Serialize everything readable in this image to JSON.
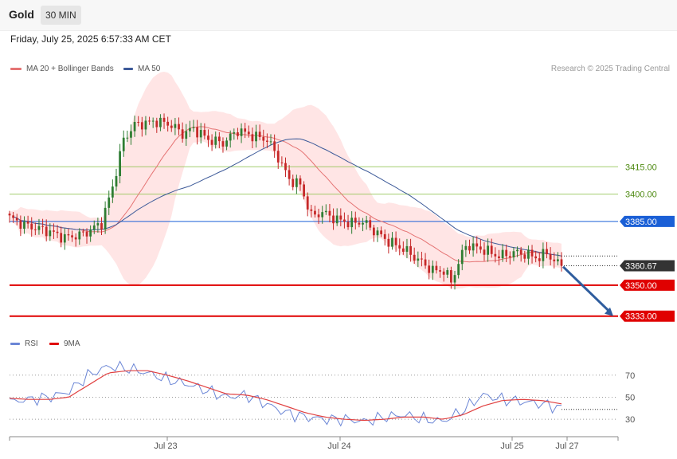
{
  "header": {
    "symbol": "Gold",
    "timeframe": "30 MIN"
  },
  "datetime": "Friday, July 25, 2025 6:57:33 AM CET",
  "legend": {
    "ma20_label": "MA 20 + Bollinger Bands",
    "ma50_label": "MA 50",
    "copyright": "Research © 2025 Trading Central",
    "rsi_label": "RSI",
    "rsi_ma_label": "9MA"
  },
  "colors": {
    "up_candle": "#2e7d32",
    "down_candle": "#c62828",
    "ma20": "#e57373",
    "ma50": "#3d5a99",
    "bollinger_fill": "#ffe0e0",
    "support": "#e00000",
    "pivot": "#1a5fd6",
    "resistance": "#8bc34a",
    "arrow": "#2f5d9e",
    "rsi": "#6b86d6",
    "rsi_ma": "#e04040"
  },
  "chart_data": [
    {
      "type": "candlestick",
      "title": "Gold",
      "timeframe": "30 MIN",
      "y_range": [
        3325,
        3465
      ],
      "x_labels": [
        "Jul 23",
        "Jul 24",
        "Jul 25",
        "Jul 27"
      ],
      "current_price": 3360.67,
      "price_anchors": [
        [
          0,
          3387
        ],
        [
          4,
          3383
        ],
        [
          10,
          3380
        ],
        [
          15,
          3376
        ],
        [
          20,
          3378
        ],
        [
          25,
          3384
        ],
        [
          28,
          3404
        ],
        [
          31,
          3430
        ],
        [
          34,
          3438
        ],
        [
          40,
          3440
        ],
        [
          44,
          3438
        ],
        [
          47,
          3433
        ],
        [
          50,
          3436
        ],
        [
          54,
          3430
        ],
        [
          58,
          3428
        ],
        [
          62,
          3435
        ],
        [
          66,
          3432
        ],
        [
          70,
          3430
        ],
        [
          73,
          3420
        ],
        [
          76,
          3408
        ],
        [
          79,
          3405
        ],
        [
          82,
          3388
        ],
        [
          85,
          3390
        ],
        [
          89,
          3386
        ],
        [
          93,
          3384
        ],
        [
          96,
          3385
        ],
        [
          99,
          3380
        ],
        [
          103,
          3374
        ],
        [
          107,
          3370
        ],
        [
          111,
          3364
        ],
        [
          115,
          3358
        ],
        [
          118,
          3358
        ],
        [
          120,
          3352
        ],
        [
          122,
          3362
        ],
        [
          124,
          3372
        ],
        [
          128,
          3370
        ],
        [
          133,
          3366
        ],
        [
          138,
          3368
        ],
        [
          142,
          3366
        ],
        [
          144,
          3365
        ],
        [
          146,
          3368
        ],
        [
          148,
          3363
        ],
        [
          150,
          3361
        ]
      ],
      "ma20_label": "MA 20 + Bollinger Bands",
      "ma50_label": "MA 50",
      "levels": [
        {
          "value": 3415.0,
          "label": "3415.00",
          "kind": "resistance"
        },
        {
          "value": 3400.0,
          "label": "3400.00",
          "kind": "resistance"
        },
        {
          "value": 3385.0,
          "label": "3385.00",
          "kind": "pivot"
        },
        {
          "value": 3360.67,
          "label": "3360.67",
          "kind": "current"
        },
        {
          "value": 3350.0,
          "label": "3350.00",
          "kind": "support"
        },
        {
          "value": 3333.0,
          "label": "3333.00",
          "kind": "support"
        }
      ],
      "forecast_arrow": {
        "from": 3361,
        "to": 3333
      }
    },
    {
      "type": "line",
      "title": "RSI",
      "series": [
        {
          "name": "RSI",
          "values": [
            46,
            48,
            50,
            55,
            70,
            78,
            76,
            72,
            66,
            62,
            56,
            50,
            52,
            44,
            36,
            32,
            30,
            30,
            28,
            32,
            34,
            30,
            28,
            38,
            52,
            48,
            46,
            44,
            40
          ]
        },
        {
          "name": "9MA",
          "values": [
            49,
            48,
            48,
            50,
            61,
            72,
            74,
            74,
            70,
            65,
            59,
            53,
            52,
            48,
            42,
            36,
            32,
            30,
            29,
            30,
            32,
            32,
            30,
            34,
            42,
            47,
            48,
            47,
            44
          ]
        }
      ],
      "y_range": [
        20,
        85
      ],
      "y_ticks": [
        30,
        50,
        70
      ]
    }
  ]
}
